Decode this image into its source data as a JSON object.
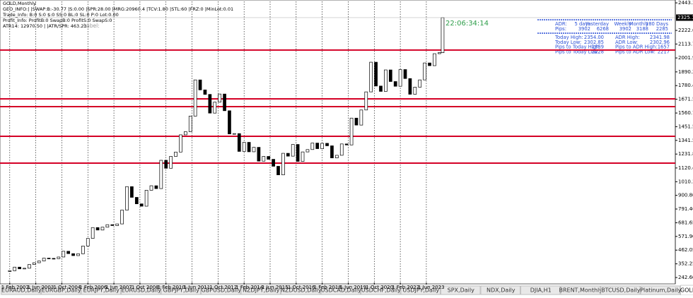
{
  "chart_data": {
    "type": "candlestick",
    "symbol_title": "GOLD,Monthly",
    "info_lines": [
      "GEO_INFO:| |SWAP:B:-30.77 |S:0.00 |SPR:28.00 |MRG:20960.4 |TCV:1.80 |STL:60 |FRZ:0 |MinLot:0.01",
      "Trade_Info: B:0 S:0 $:0 SS:0 BL:0 SL:0 P:0 Lot:0.00",
      "Profit_Info: ProfitB:0 SwapB:0 ProfitS:0 SwapS:0",
      "ATR14: 12970.50 | |ATR/SPR: 463.23"
    ],
    "label_text": "Label:",
    "timer": "22:06:34:14",
    "adr_panel": {
      "header": [
        "ADR:",
        "5 days",
        "Yesterday",
        "Weekly",
        "Monthly",
        "180 Days"
      ],
      "pips": [
        "Pips:",
        "3902",
        "6268",
        "3902",
        "3188",
        "2285"
      ],
      "rows": [
        [
          "Today High:",
          "2354.00",
          "ADR High:",
          "2341.98"
        ],
        [
          "Today Low:",
          "2302.85",
          "ADR Low:",
          "2302.96"
        ],
        [
          "Pips to Today High:",
          "2859",
          "Pips to ADR High:",
          "1657"
        ],
        [
          "Pips to Today Low:",
          "2228",
          "Pips to ADR Low:",
          "2217"
        ]
      ]
    },
    "x": [
      "2002-02-01",
      "2002-05-01",
      "2002-08-01",
      "2002-11-01",
      "2003-02-01",
      "2003-05-01",
      "2003-08-01",
      "2003-11-01",
      "2004-02-01",
      "2004-05-01",
      "2004-08-01",
      "2004-11-01",
      "2005-02-01",
      "2005-05-01",
      "2005-08-01",
      "2005-11-01",
      "2006-02-01",
      "2006-05-01",
      "2006-08-01",
      "2006-11-01",
      "2007-02-01",
      "2007-05-01",
      "2007-08-01",
      "2007-11-01",
      "2008-02-01",
      "2008-05-01",
      "2008-08-01",
      "2008-11-01",
      "2009-02-01",
      "2009-05-01",
      "2009-08-01",
      "2009-11-01",
      "2010-02-01",
      "2010-05-01",
      "2010-08-01",
      "2010-11-01",
      "2011-02-01",
      "2011-05-01",
      "2011-08-01",
      "2011-11-01",
      "2012-02-01",
      "2012-05-01",
      "2012-08-01",
      "2012-11-01",
      "2013-02-01",
      "2013-05-01",
      "2013-08-01",
      "2013-11-01",
      "2014-02-01",
      "2014-05-01",
      "2014-08-01",
      "2014-11-01",
      "2015-02-01",
      "2015-05-01",
      "2015-08-01",
      "2015-11-01",
      "2016-02-01",
      "2016-05-01",
      "2016-08-01",
      "2016-11-01",
      "2017-02-01",
      "2017-05-01",
      "2017-08-01",
      "2017-11-01",
      "2018-02-01",
      "2018-05-01",
      "2018-08-01",
      "2018-11-01",
      "2019-02-01",
      "2019-05-01",
      "2019-08-01",
      "2019-11-01",
      "2020-02-01",
      "2020-05-01",
      "2020-08-01",
      "2020-11-01",
      "2021-02-01",
      "2021-05-01",
      "2021-08-01",
      "2021-11-01",
      "2022-02-01",
      "2022-05-01",
      "2022-08-01",
      "2022-11-01",
      "2023-02-01",
      "2023-05-01",
      "2023-08-01",
      "2023-11-01",
      "2024-02-01",
      "2024-04-01"
    ],
    "values": [
      297,
      326,
      312,
      317,
      347,
      361,
      375,
      398,
      396,
      394,
      407,
      453,
      434,
      418,
      433,
      495,
      556,
      643,
      623,
      646,
      666,
      659,
      672,
      783,
      971,
      885,
      833,
      814,
      942,
      978,
      955,
      1182,
      1118,
      1213,
      1248,
      1386,
      1411,
      1536,
      1826,
      1746,
      1710,
      1560,
      1648,
      1713,
      1579,
      1393,
      1396,
      1253,
      1326,
      1250,
      1286,
      1175,
      1213,
      1190,
      1134,
      1065,
      1238,
      1215,
      1309,
      1173,
      1249,
      1268,
      1320,
      1275,
      1318,
      1298,
      1201,
      1222,
      1313,
      1305,
      1520,
      1464,
      1585,
      1730,
      1968,
      1777,
      1734,
      1906,
      1813,
      1775,
      1909,
      1837,
      1711,
      1768,
      1826,
      1962,
      1940,
      2036,
      2044,
      2325
    ],
    "bull_color": "#ffffff",
    "bear_color": "#000000",
    "levels": [
      2065,
      1674,
      1612,
      1374,
      1159
    ],
    "level_color": "#d40026",
    "current_price": {
      "value": 2325.13,
      "label": "2325.13"
    },
    "xlim": [
      "2001-08-01",
      "2036-03-01"
    ],
    "xticks": [
      {
        "value": "2002-02-01",
        "label": "1 Feb 2002"
      },
      {
        "value": "2003-06-01",
        "label": "1 Jun 2003"
      },
      {
        "value": "2004-10-01",
        "label": "1 Oct 2004"
      },
      {
        "value": "2006-02-01",
        "label": "1 Feb 2006"
      },
      {
        "value": "2007-06-01",
        "label": "1 Jun 2007"
      },
      {
        "value": "2008-10-01",
        "label": "1 Oct 2008"
      },
      {
        "value": "2010-02-01",
        "label": "1 Feb 2010"
      },
      {
        "value": "2011-06-01",
        "label": "1 Jun 2011"
      },
      {
        "value": "2012-10-01",
        "label": "1 Oct 2012"
      },
      {
        "value": "2014-02-01",
        "label": "1 Feb 2014"
      },
      {
        "value": "2015-06-01",
        "label": "1 Jun 2015"
      },
      {
        "value": "2016-10-01",
        "label": "1 Oct 2016"
      },
      {
        "value": "2018-02-01",
        "label": "1 Feb 2018"
      },
      {
        "value": "2019-06-01",
        "label": "1 Jun 2019"
      },
      {
        "value": "2020-10-01",
        "label": "1 Oct 2020"
      },
      {
        "value": "2022-02-01",
        "label": "1 Feb 2022"
      },
      {
        "value": "2023-06-01",
        "label": "1 Jun 2023"
      }
    ],
    "ylim": [
      203,
      2455
    ],
    "yticks": [
      {
        "value": 2443.3,
        "label": "2443.3"
      },
      {
        "value": 2222.6,
        "label": "2222.60"
      },
      {
        "value": 2113.7,
        "label": "2113.70"
      },
      {
        "value": 2001.95,
        "label": "2001.95"
      },
      {
        "value": 1890.2,
        "label": "1890.20"
      },
      {
        "value": 1780.4,
        "label": "1780.40"
      },
      {
        "value": 1671.55,
        "label": "1671.55"
      },
      {
        "value": 1560.7,
        "label": "1560.70"
      },
      {
        "value": 1451.5,
        "label": "1451.50"
      },
      {
        "value": 1341.55,
        "label": "1341.55"
      },
      {
        "value": 1231.8,
        "label": "1231.80"
      },
      {
        "value": 1120.4,
        "label": "1120.40"
      },
      {
        "value": 1010.3,
        "label": "1010.30"
      },
      {
        "value": 900.8,
        "label": "900.80"
      },
      {
        "value": 791.4,
        "label": "791.40"
      },
      {
        "value": 681.65,
        "label": "681.65"
      },
      {
        "value": 571.9,
        "label": "571.90"
      },
      {
        "value": 462.05,
        "label": "462.05"
      },
      {
        "value": 352.25,
        "label": "352.25"
      },
      {
        "value": 242.6,
        "label": "242.60"
      }
    ],
    "vertical_grid": true
  },
  "tabs": [
    "EURAUD,Daily",
    "EURGBP,Daily",
    "EURJPY,Daily",
    "EURUSD,Daily",
    "GBPJPY,Daily",
    "GBPUSD,Daily",
    "NZDJPY,Daily",
    "NZDUSD,Daily",
    "USDCAD,Daily",
    "USDCHF,Daily",
    "USDJPY,Daily",
    "SPX,Daily",
    "NDX,Daily",
    "DJIA,H1",
    "BRENT,Monthly",
    "BTCUSD,Daily",
    "Platinum,Daily",
    "GOLD,Monthly"
  ],
  "active_tab": 17
}
